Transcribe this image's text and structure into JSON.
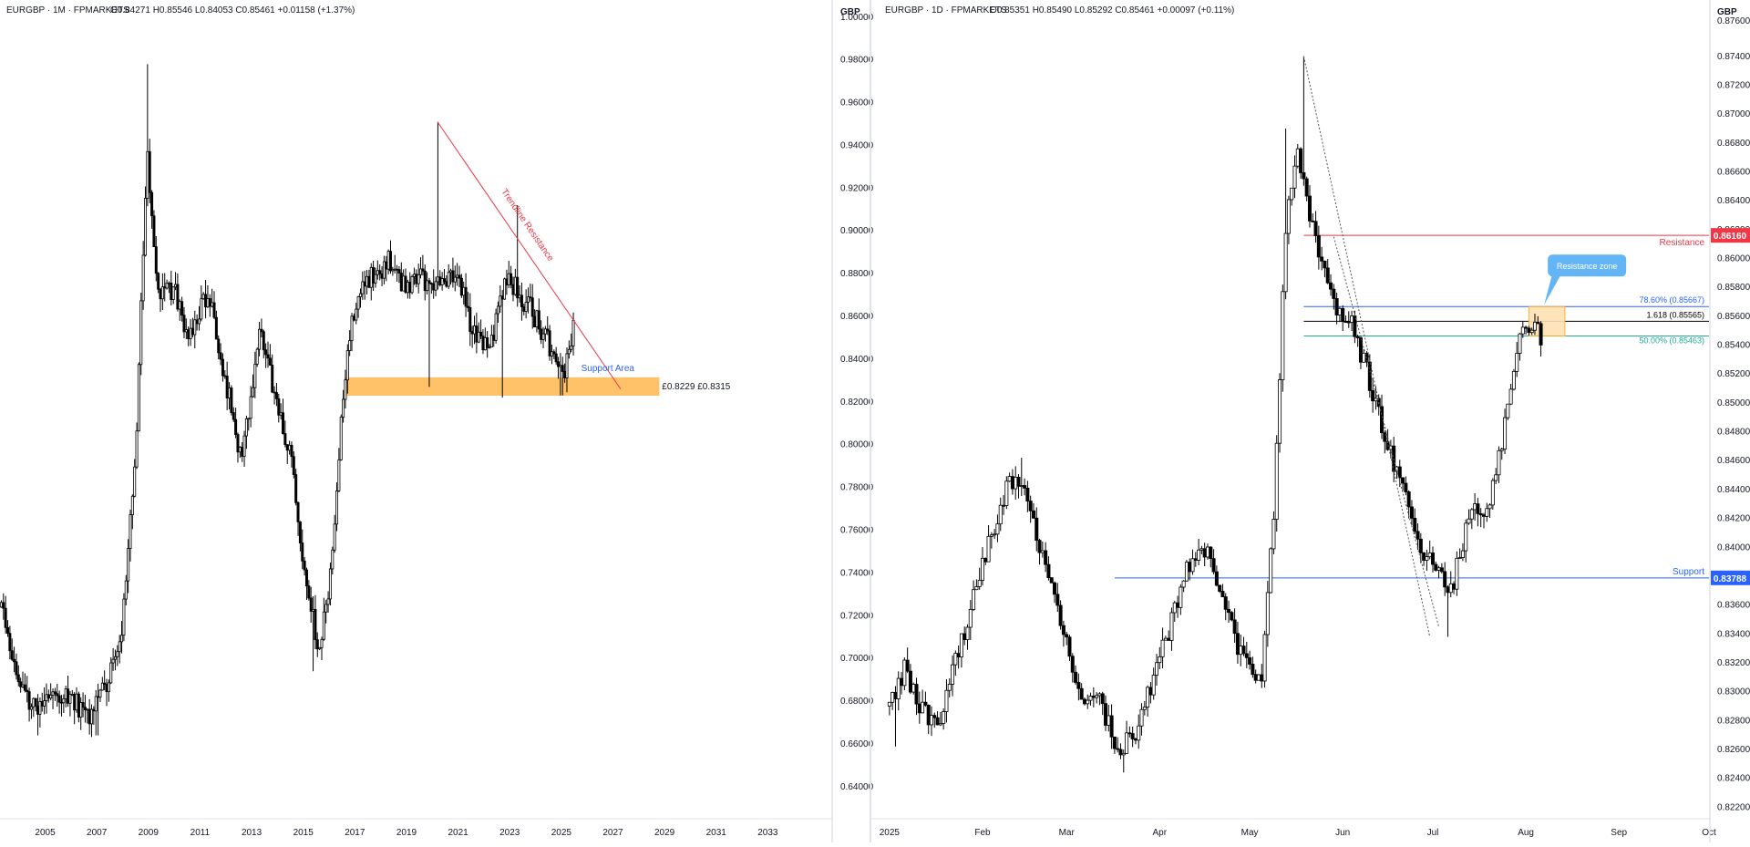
{
  "panels": [
    {
      "id": "left",
      "header": {
        "symbol": "EURGBP · 1M · FPMARKETS",
        "ohlc": "O0.84271  H0.85546  L0.84053  C0.85461  +0.01158 (+1.37%)"
      },
      "currency_label": "GBP",
      "annotations": {
        "trendline_label": "Trendline Resistance",
        "support_label": "Support Area",
        "support_range_label": "£0.8229 £0.8315"
      }
    },
    {
      "id": "right",
      "header": {
        "symbol": "EURGBP · 1D · FPMARKETS",
        "ohlc": "O0.85351  H0.85490  L0.85292  C0.85461  +0.00097 (+0.11%)"
      },
      "currency_label": "GBP",
      "annotations": {
        "resistance_zone_callout": "Resistance zone",
        "resistance_label": "Resistance",
        "resistance_price_tag": "0.86160",
        "support_label": "Support",
        "support_price_tag": "0.83788",
        "fib_786": "78.60% (0.85667)",
        "fib_1618": "1.618 (0.85565)",
        "fib_50": "50.00% (0.85463)"
      }
    }
  ],
  "chart_data": [
    {
      "type": "candlestick",
      "title": "EURGBP · 1M · FPMARKETS",
      "y_ticks": [
        "1.00000",
        "0.98000",
        "0.96000",
        "0.94000",
        "0.92000",
        "0.90000",
        "0.88000",
        "0.86000",
        "0.84000",
        "0.82000",
        "0.80000",
        "0.78000",
        "0.76000",
        "0.74000",
        "0.72000",
        "0.70000",
        "0.68000",
        "0.66000",
        "0.64000"
      ],
      "x_ticks": [
        "2005",
        "2007",
        "2009",
        "2011",
        "2013",
        "2015",
        "2017",
        "2019",
        "2021",
        "2023",
        "2025",
        "2027",
        "2029",
        "2031",
        "2033"
      ],
      "ylim": [
        0.625,
        1.008
      ],
      "xlim": [
        2003.25,
        2034.4
      ],
      "grid": false,
      "waypoints": [
        [
          2003.3,
          0.724
        ],
        [
          2003.9,
          0.692
        ],
        [
          2004.6,
          0.677
        ],
        [
          2005.3,
          0.685
        ],
        [
          2006.0,
          0.682
        ],
        [
          2006.6,
          0.672
        ],
        [
          2007.3,
          0.686
        ],
        [
          2007.9,
          0.705
        ],
        [
          2008.5,
          0.795
        ],
        [
          2008.95,
          0.935
        ],
        [
          2009.4,
          0.868
        ],
        [
          2010.0,
          0.872
        ],
        [
          2010.6,
          0.85
        ],
        [
          2011.3,
          0.872
        ],
        [
          2012.0,
          0.83
        ],
        [
          2012.6,
          0.79
        ],
        [
          2013.3,
          0.852
        ],
        [
          2014.0,
          0.82
        ],
        [
          2014.6,
          0.788
        ],
        [
          2015.1,
          0.737
        ],
        [
          2015.6,
          0.704
        ],
        [
          2016.1,
          0.742
        ],
        [
          2016.5,
          0.815
        ],
        [
          2016.9,
          0.862
        ],
        [
          2017.6,
          0.88
        ],
        [
          2018.3,
          0.885
        ],
        [
          2018.9,
          0.874
        ],
        [
          2019.5,
          0.88
        ],
        [
          2020.1,
          0.872
        ],
        [
          2020.6,
          0.88
        ],
        [
          2021.1,
          0.875
        ],
        [
          2021.6,
          0.852
        ],
        [
          2022.2,
          0.842
        ],
        [
          2022.8,
          0.878
        ],
        [
          2023.3,
          0.872
        ],
        [
          2023.9,
          0.862
        ],
        [
          2024.5,
          0.848
        ],
        [
          2024.9,
          0.832
        ],
        [
          2025.2,
          0.836
        ],
        [
          2025.5,
          0.855
        ]
      ],
      "spikes": [
        [
          2008.95,
          0.978
        ],
        [
          2008.9,
          0.888
        ],
        [
          2015.4,
          0.694
        ],
        [
          2020.2,
          0.951
        ],
        [
          2019.9,
          0.827
        ],
        [
          2022.7,
          0.822
        ],
        [
          2023.3,
          0.912
        ],
        [
          2025.0,
          0.823
        ],
        [
          2004.7,
          0.664
        ],
        [
          2007.0,
          0.664
        ]
      ],
      "support_zone": [
        0.8229,
        0.8315
      ],
      "trendline": {
        "from": [
          2020.2,
          0.951
        ],
        "to": [
          2027.3,
          0.826
        ]
      }
    },
    {
      "type": "candlestick",
      "title": "EURGBP · 1D · FPMARKETS",
      "y_ticks": [
        "0.87400",
        "0.87200",
        "0.87000",
        "0.86800",
        "0.86600",
        "0.86400",
        "0.86200",
        "0.86000",
        "0.85800",
        "0.85600",
        "0.85400",
        "0.85200",
        "0.85000",
        "0.84800",
        "0.84600",
        "0.84400",
        "0.84200",
        "0.84000",
        "0.83800",
        "0.83600",
        "0.83400",
        "0.83200",
        "0.83000",
        "0.82800",
        "0.82600",
        "0.82400",
        "0.82200"
      ],
      "y_top_label": "0.87600",
      "x_ticks": [
        "2025",
        "Feb",
        "Mar",
        "Apr",
        "May",
        "Jun",
        "Jul",
        "Aug",
        "Sep",
        "Oct"
      ],
      "ylim": [
        0.8212,
        0.8779
      ],
      "xlim": [
        -3,
        273
      ],
      "grid": false,
      "waypoints": [
        [
          0,
          0.829
        ],
        [
          5,
          0.8315
        ],
        [
          10,
          0.829
        ],
        [
          16,
          0.8275
        ],
        [
          22,
          0.832
        ],
        [
          28,
          0.8365
        ],
        [
          34,
          0.8408
        ],
        [
          40,
          0.8448
        ],
        [
          46,
          0.8435
        ],
        [
          52,
          0.8385
        ],
        [
          58,
          0.8338
        ],
        [
          64,
          0.8298
        ],
        [
          70,
          0.8292
        ],
        [
          76,
          0.8262
        ],
        [
          82,
          0.8268
        ],
        [
          88,
          0.831
        ],
        [
          94,
          0.8348
        ],
        [
          100,
          0.839
        ],
        [
          106,
          0.8395
        ],
        [
          112,
          0.8358
        ],
        [
          118,
          0.832
        ],
        [
          124,
          0.831
        ],
        [
          128,
          0.842
        ],
        [
          132,
          0.862
        ],
        [
          136,
          0.8675
        ],
        [
          139,
          0.864
        ],
        [
          143,
          0.8608
        ],
        [
          148,
          0.857
        ],
        [
          154,
          0.8555
        ],
        [
          160,
          0.8515
        ],
        [
          166,
          0.847
        ],
        [
          172,
          0.8432
        ],
        [
          178,
          0.8395
        ],
        [
          184,
          0.838
        ],
        [
          187,
          0.8368
        ],
        [
          190,
          0.8395
        ],
        [
          194,
          0.8425
        ],
        [
          198,
          0.842
        ],
        [
          203,
          0.846
        ],
        [
          206,
          0.85
        ],
        [
          209,
          0.854
        ],
        [
          213,
          0.8555
        ],
        [
          217,
          0.8547
        ]
      ],
      "spikes": [
        [
          138,
          0.874
        ],
        [
          186,
          0.8338
        ],
        [
          78,
          0.8244
        ],
        [
          2,
          0.8262
        ],
        [
          44,
          0.8462
        ],
        [
          132,
          0.869
        ]
      ],
      "resistance_level": 0.8616,
      "support_level": 0.83788,
      "fib_levels": [
        {
          "label": "78.60% (0.85667)",
          "price": 0.85667,
          "color": "#2962ff"
        },
        {
          "label": "1.618 (0.85565)",
          "price": 0.85565,
          "color": "#000000"
        },
        {
          "label": "50.00% (0.85463)",
          "price": 0.85463,
          "color": "#22ab94"
        }
      ],
      "resistance_zone": {
        "x": [
          213,
          225
        ],
        "y": [
          0.85463,
          0.85667
        ]
      },
      "dotted_swing": [
        [
          138,
          0.874
        ],
        [
          180,
          0.8338
        ]
      ],
      "dotted_swing2": [
        [
          148,
          0.8615
        ],
        [
          183,
          0.8345
        ]
      ]
    }
  ]
}
